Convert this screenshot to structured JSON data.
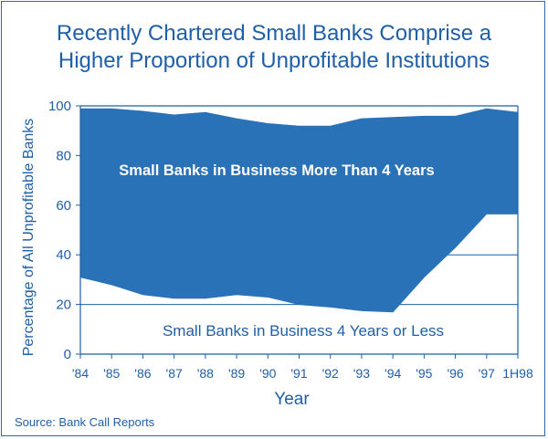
{
  "chart_data": {
    "type": "area",
    "title_line1": "Recently Chartered Small Banks Comprise a",
    "title_line2": "Higher Proportion of Unprofitable Institutions",
    "xlabel": "Year",
    "ylabel": "Percentage of All Unprofitable Banks",
    "x": [
      "'84",
      "'85",
      "'86",
      "'87",
      "'88",
      "'89",
      "'90",
      "'91",
      "'92",
      "'93",
      "'94",
      "'95",
      "'96",
      "'97",
      "1H98"
    ],
    "ylim": [
      0,
      100
    ],
    "yticks": [
      0,
      20,
      40,
      60,
      80,
      100
    ],
    "grid": true,
    "series": [
      {
        "name": "Small Banks in Business 4 Years or Less",
        "values": [
          31,
          28,
          24,
          22.5,
          22.5,
          24,
          23,
          20,
          19,
          17.5,
          17,
          31,
          43,
          56.5,
          56.5
        ]
      },
      {
        "name": "Small Banks in Business More Than 4 Years",
        "values": [
          68,
          71,
          74,
          74,
          75,
          71,
          70,
          72,
          73,
          77.5,
          78.5,
          65,
          53,
          42.5,
          41
        ]
      }
    ],
    "colors": {
      "upper_area": "#2a72b8",
      "lower_area": "#ffffff",
      "text": "#1f5fa8",
      "axis": "#1f5fa8"
    },
    "source": "Source: Bank Call Reports"
  }
}
